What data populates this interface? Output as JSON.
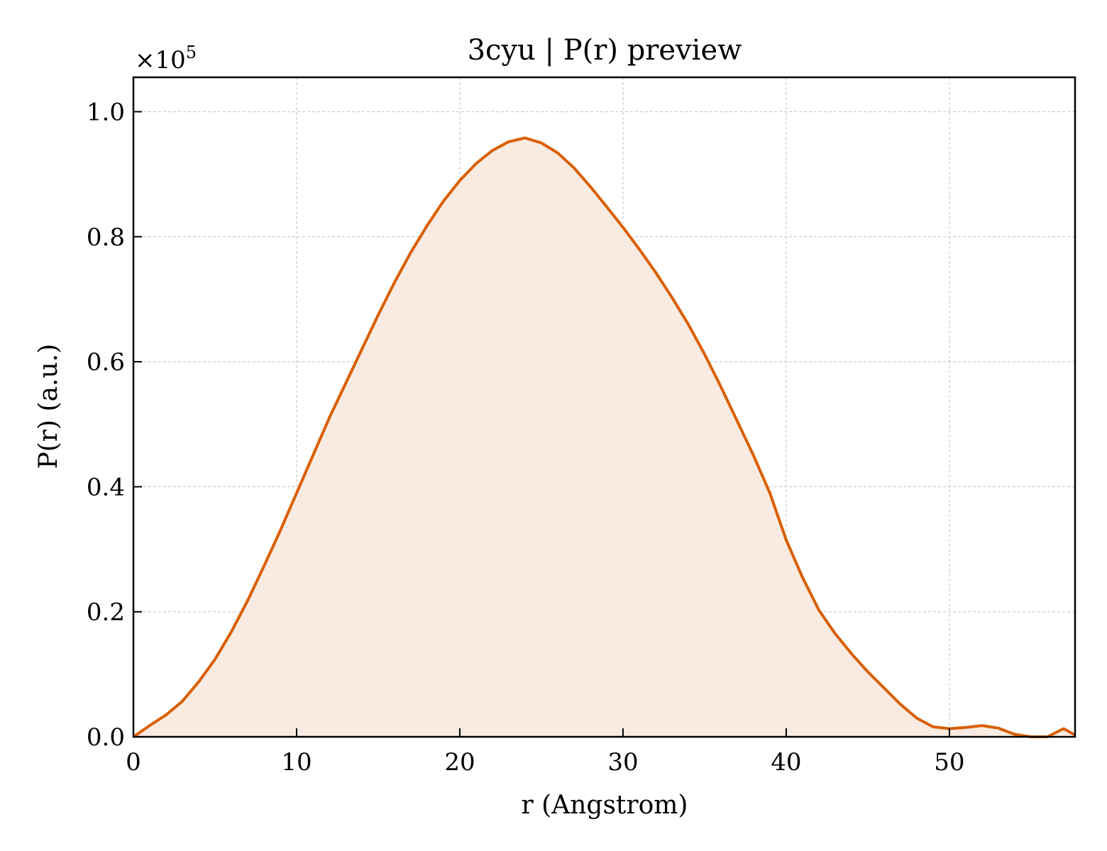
{
  "chart_data": {
    "type": "area",
    "title": "3cyu | P(r) preview",
    "xlabel": "r (Angstrom)",
    "ylabel": "P(r) (a.u.)",
    "y_offset_text": {
      "base": "×10",
      "exponent": "5"
    },
    "xlim": [
      0,
      57.7
    ],
    "ylim": [
      0,
      1.055
    ],
    "y_scale_factor": 100000,
    "x_ticks": [
      0,
      10,
      20,
      30,
      40,
      50
    ],
    "x_tick_labels": [
      "0",
      "10",
      "20",
      "30",
      "40",
      "50"
    ],
    "y_ticks": [
      0.0,
      0.2,
      0.4,
      0.6,
      0.8,
      1.0
    ],
    "y_tick_labels": [
      "0.0",
      "0.2",
      "0.4",
      "0.6",
      "0.8",
      "1.0"
    ],
    "grid": true,
    "colors": {
      "line": "#d95f02",
      "fill": "#f9ebe1"
    },
    "series": [
      {
        "x": [
          0,
          1,
          2,
          3,
          4,
          5,
          6,
          7,
          8,
          9,
          10,
          11,
          12,
          13,
          14,
          15,
          16,
          17,
          18,
          19,
          20,
          21,
          22,
          23,
          24,
          25,
          26,
          27,
          28,
          29,
          30,
          31,
          32,
          33,
          34,
          35,
          36,
          37,
          38,
          39,
          40,
          41,
          42,
          43,
          44,
          45,
          46,
          47,
          48,
          49,
          50,
          51,
          52,
          53,
          54,
          55,
          56,
          57,
          57.7
        ],
        "y": [
          0.0,
          0.018,
          0.035,
          0.057,
          0.088,
          0.124,
          0.168,
          0.218,
          0.273,
          0.33,
          0.39,
          0.45,
          0.51,
          0.565,
          0.62,
          0.675,
          0.727,
          0.775,
          0.818,
          0.857,
          0.89,
          0.917,
          0.938,
          0.952,
          0.958,
          0.95,
          0.934,
          0.91,
          0.88,
          0.848,
          0.815,
          0.78,
          0.743,
          0.703,
          0.66,
          0.612,
          0.56,
          0.505,
          0.45,
          0.39,
          0.315,
          0.255,
          0.203,
          0.165,
          0.133,
          0.104,
          0.078,
          0.052,
          0.03,
          0.016,
          0.013,
          0.015,
          0.018,
          0.014,
          0.004,
          0.0,
          0.0,
          0.013,
          0.003
        ]
      }
    ]
  }
}
